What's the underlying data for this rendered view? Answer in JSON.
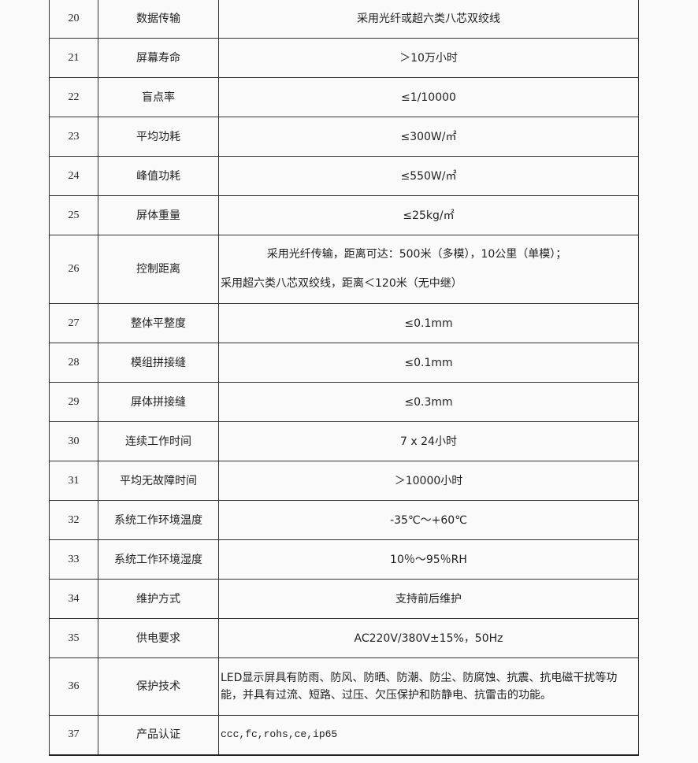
{
  "rows": [
    {
      "no": "20",
      "item": "数据传输",
      "value": "采用光纤或超六类八芯双绞线"
    },
    {
      "no": "21",
      "item": "屏幕寿命",
      "value": "＞10万小时"
    },
    {
      "no": "22",
      "item": "盲点率",
      "value": "≤1/10000"
    },
    {
      "no": "23",
      "item": "平均功耗",
      "value": "≤300W/㎡"
    },
    {
      "no": "24",
      "item": "峰值功耗",
      "value": "≤550W/㎡"
    },
    {
      "no": "25",
      "item": "屏体重量",
      "value": "≤25kg/㎡"
    },
    {
      "no": "26",
      "item": "控制距离",
      "value_line1": "采用光纤传输，距离可达：500米（多模），10公里（单模）；",
      "value_line2": "采用超六类八芯双绞线，距离＜120米（无中继）"
    },
    {
      "no": "27",
      "item": "整体平整度",
      "value": "≤0.1mm"
    },
    {
      "no": "28",
      "item": "模组拼接缝",
      "value": "≤0.1mm"
    },
    {
      "no": "29",
      "item": "屏体拼接缝",
      "value": "≤0.3mm"
    },
    {
      "no": "30",
      "item": "连续工作时间",
      "value": "7 x 24小时"
    },
    {
      "no": "31",
      "item": "平均无故障时间",
      "value": "＞10000小时"
    },
    {
      "no": "32",
      "item": "系统工作环境温度",
      "value": "-35℃～+60℃"
    },
    {
      "no": "33",
      "item": "系统工作环境湿度",
      "value": "10％～95％RH"
    },
    {
      "no": "34",
      "item": "维护方式",
      "value": "支持前后维护"
    },
    {
      "no": "35",
      "item": "供电要求",
      "value": "AC220V/380V±15%，50Hz"
    },
    {
      "no": "36",
      "item": "保护技术",
      "value": "LED显示屏具有防雨、防风、防晒、防潮、防尘、防腐蚀、抗震、抗电磁干扰等功能，并具有过流、短路、过压、欠压保护和防静电、抗雷击的功能。"
    },
    {
      "no": "37",
      "item": "产品认证",
      "value": "ccc,fc,rohs,ce,ip65"
    }
  ]
}
